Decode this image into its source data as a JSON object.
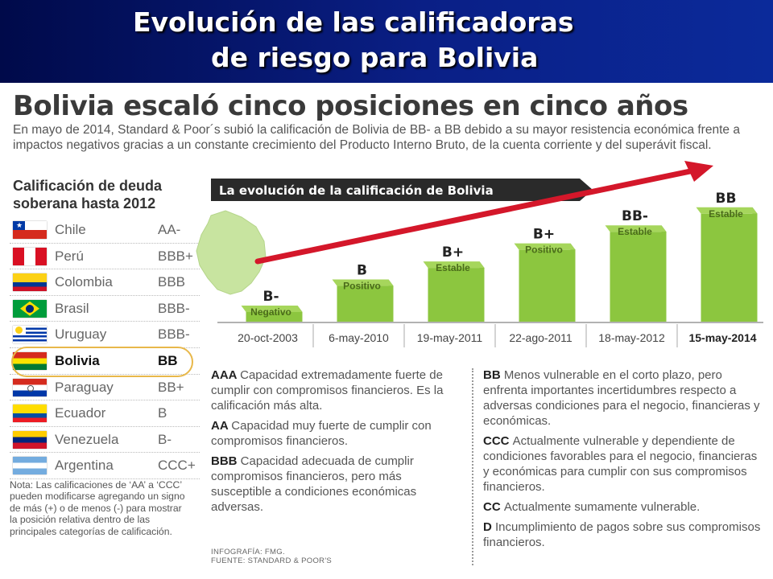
{
  "banner": {
    "line1": "Evolución de las calificadoras",
    "line2": "de riesgo para Bolivia"
  },
  "headline": "Bolivia escaló cinco posiciones en cinco años",
  "lead": "En mayo de 2014, Standard & Poor´s subió la calificación de Bolivia de BB- a BB debido a su mayor resistencia económica frente a impactos negativos gracias a un constante crecimiento del Producto Interno Bruto, de la cuenta corriente y del superávit fiscal.",
  "ratings": {
    "title": "Calificación de deuda soberana hasta 2012",
    "rows": [
      {
        "country": "Chile",
        "grade": "AA-",
        "flag": "chile-flag"
      },
      {
        "country": "Perú",
        "grade": "BBB+",
        "flag": "peru-flag"
      },
      {
        "country": "Colombia",
        "grade": "BBB",
        "flag": "colombia-flag"
      },
      {
        "country": "Brasil",
        "grade": "BBB-",
        "flag": "brazil-flag"
      },
      {
        "country": "Uruguay",
        "grade": "BBB-",
        "flag": "uruguay-flag"
      },
      {
        "country": "Bolivia",
        "grade": "BB",
        "flag": "bolivia-flag",
        "highlight": true
      },
      {
        "country": "Paraguay",
        "grade": "BB+",
        "flag": "paraguay-flag"
      },
      {
        "country": "Ecuador",
        "grade": "B",
        "flag": "ecuador-flag"
      },
      {
        "country": "Venezuela",
        "grade": "B-",
        "flag": "venezuela-flag"
      },
      {
        "country": "Argentina",
        "grade": "CCC+",
        "flag": "argentina-flag"
      }
    ],
    "note": "Nota: Las calificaciones de ‘AA’ a ‘CCC’ pueden modificarse agregando un signo de más (+) o de menos (-) para mostrar la posición relativa dentro de las principales categorías de calificación."
  },
  "chart_data": {
    "type": "bar",
    "title": "La evolución de la calificación de Bolivia",
    "categories": [
      "20-oct-2003",
      "6-may-2010",
      "19-may-2011",
      "22-ago-2011",
      "18-may-2012",
      "15-may-2014"
    ],
    "labels": [
      "B-",
      "B",
      "B+",
      "B+",
      "BB-",
      "BB"
    ],
    "outlooks": [
      "Negativo",
      "Positivo",
      "Estable",
      "Positivo",
      "Estable",
      "Estable"
    ],
    "values": [
      1,
      2,
      3,
      4,
      5,
      6
    ],
    "ylim": [
      0,
      6
    ],
    "highlight_last": true,
    "colors": {
      "bar_top": "#8cc63f",
      "bar_side": "#5f9a24",
      "arrow": "#d4172a",
      "banner": "#2a2a2a",
      "map": "#c8e4a0"
    }
  },
  "definitions": {
    "col1": [
      {
        "code": "AAA",
        "text": "Capacidad extremadamente fuerte de cumplir con compromisos financieros. Es la calificación más alta."
      },
      {
        "code": "AA",
        "text": "Capacidad muy fuerte de cumplir con compromisos financieros."
      },
      {
        "code": "BBB",
        "text": "Capacidad adecuada de cumplir compromisos financieros, pero más susceptible a condiciones económicas adversas."
      }
    ],
    "col2": [
      {
        "code": "BB",
        "text": "Menos vulnerable en el corto plazo, pero enfrenta importantes incertidumbres respecto a adversas condiciones para el negocio, financieras y económicas."
      },
      {
        "code": "CCC",
        "text": "Actualmente vulnerable y dependiente de condiciones favorables para el negocio, financieras y económicas para cumplir con sus compromisos financieros."
      },
      {
        "code": "CC",
        "text": "Actualmente sumamente vulnerable."
      },
      {
        "code": "D",
        "text": "Incumplimiento de pagos sobre sus compromisos financieros."
      }
    ]
  },
  "credits": {
    "line1": "INFOGRAFÍA: FMG.",
    "line2": "FUENTE: STANDARD & POOR'S"
  }
}
